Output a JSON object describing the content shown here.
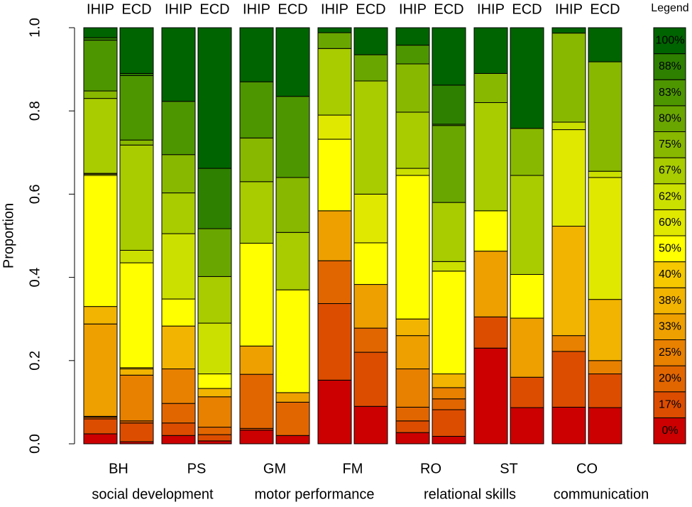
{
  "chart_data": {
    "type": "stacked_bar",
    "ylabel": "Proportion",
    "ylim": [
      0,
      1
    ],
    "yticks": [
      {
        "value": 0,
        "label": "0.0"
      },
      0.2,
      0.4,
      0.6,
      0.8,
      {
        "value": 1,
        "label": "1.0"
      }
    ],
    "categories": [
      "IHIP",
      "ECD",
      "IHIP",
      "ECD",
      "IHIP",
      "ECD",
      "IHIP",
      "ECD",
      "IHIP",
      "ECD",
      "IHIP",
      "ECD",
      "IHIP",
      "ECD"
    ],
    "groups": [
      "BH",
      "PS",
      "GM",
      "FM",
      "RO",
      "ST",
      "CO"
    ],
    "domains": [
      "social development",
      "motor performance",
      "relational skills",
      "communication"
    ],
    "legend_title": "Legend",
    "series": [
      {
        "name": "0%",
        "color": "#cc0000",
        "values": [
          0.024,
          0.005,
          0.02,
          0.007,
          0.033,
          0.02,
          0.153,
          0.09,
          0.027,
          0.018,
          0.23,
          0.087,
          0.088,
          0.087
        ]
      },
      {
        "name": "17%",
        "color": "#dd4d00",
        "values": [
          0.036,
          0.045,
          0.03,
          0.015,
          0.004,
          0,
          0.184,
          0.13,
          0.028,
          0.064,
          0.075,
          0.073,
          0.134,
          0.081
        ]
      },
      {
        "name": "20%",
        "color": "#e26600",
        "values": [
          0.004,
          0.005,
          0.047,
          0.018,
          0.13,
          0.08,
          0.103,
          0.058,
          0.033,
          0.026,
          0,
          0,
          0,
          0
        ]
      },
      {
        "name": "25%",
        "color": "#e88000",
        "values": [
          0.002,
          0.11,
          0.083,
          0.073,
          0,
          0,
          0,
          0,
          0.092,
          0.027,
          0,
          0,
          0.038,
          0.032
        ]
      },
      {
        "name": "33%",
        "color": "#eea000",
        "values": [
          0.222,
          0,
          0,
          0,
          0.068,
          0.023,
          0.12,
          0.105,
          0.08,
          0,
          0.158,
          0.142,
          0,
          0
        ]
      },
      {
        "name": "38%",
        "color": "#f2b400",
        "values": [
          0.042,
          0.015,
          0.103,
          0.02,
          0,
          0,
          0,
          0,
          0.04,
          0.033,
          0,
          0,
          0.263,
          0.147
        ]
      },
      {
        "name": "40%",
        "color": "#f5c800",
        "values": [
          0,
          0.003,
          0,
          0,
          0,
          0,
          0,
          0,
          0,
          0,
          0,
          0,
          0,
          0
        ]
      },
      {
        "name": "50%",
        "color": "#ffff00",
        "values": [
          0.315,
          0.252,
          0.065,
          0.035,
          0.247,
          0.247,
          0.172,
          0.1,
          0.345,
          0.247,
          0.097,
          0.105,
          0,
          0
        ]
      },
      {
        "name": "60%",
        "color": "#e0e800",
        "values": [
          0.003,
          0,
          0,
          0,
          0,
          0,
          0.058,
          0.117,
          0,
          0,
          0,
          0,
          0.232,
          0.293
        ]
      },
      {
        "name": "62%",
        "color": "#cce000",
        "values": [
          0.002,
          0.03,
          0.157,
          0.122,
          0,
          0,
          0,
          0,
          0.017,
          0.023,
          0,
          0,
          0.018,
          0.015
        ]
      },
      {
        "name": "67%",
        "color": "#a8cc00",
        "values": [
          0.18,
          0.253,
          0.098,
          0.112,
          0.148,
          0.138,
          0.16,
          0.272,
          0.135,
          0.142,
          0.26,
          0.238,
          0,
          0
        ]
      },
      {
        "name": "75%",
        "color": "#88b800",
        "values": [
          0.018,
          0.012,
          0.092,
          0,
          0.105,
          0.132,
          0,
          0,
          0.116,
          0,
          0.07,
          0.113,
          0.214,
          0.263
        ]
      },
      {
        "name": "80%",
        "color": "#6aa600",
        "values": [
          0,
          0,
          0,
          0.115,
          0,
          0,
          0.038,
          0.063,
          0,
          0.185,
          0,
          0,
          0,
          0
        ]
      },
      {
        "name": "83%",
        "color": "#4e9600",
        "values": [
          0.122,
          0.155,
          0.128,
          0,
          0.135,
          0.195,
          0,
          0,
          0.045,
          0.003,
          0,
          0,
          0,
          0
        ]
      },
      {
        "name": "88%",
        "color": "#2e8000",
        "values": [
          0.006,
          0.005,
          0,
          0.145,
          0,
          0,
          0,
          0,
          0,
          0.094,
          0,
          0,
          0,
          0
        ]
      },
      {
        "name": "100%",
        "color": "#006400",
        "values": [
          0.024,
          0.11,
          0.177,
          0.338,
          0.13,
          0.165,
          0.012,
          0.065,
          0.042,
          0.138,
          0.11,
          0.242,
          0.013,
          0.082
        ]
      }
    ]
  }
}
